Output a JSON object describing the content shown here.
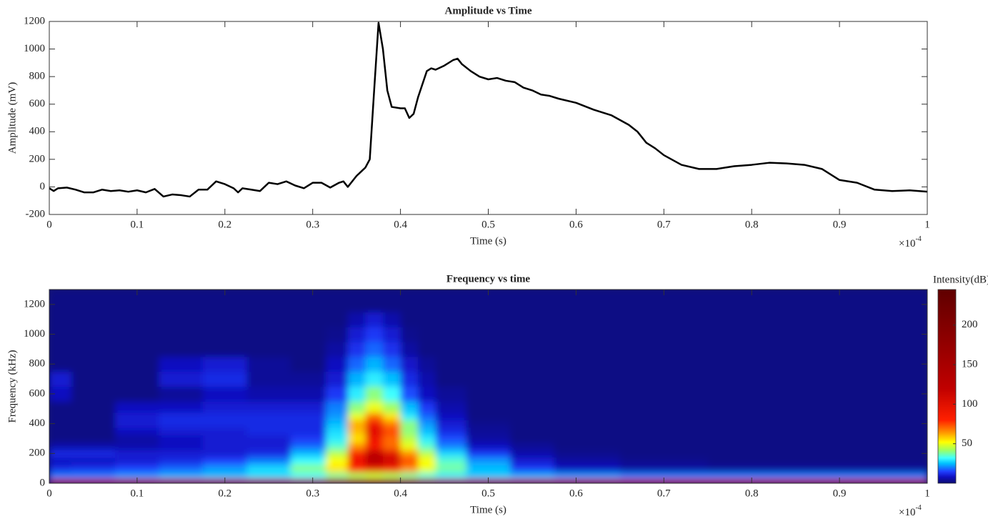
{
  "chart_data": [
    {
      "type": "line",
      "title": "Amplitude vs Time",
      "xlabel": "Time (s)",
      "ylabel": "Amplitude (mV)",
      "x_multiplier": "×10",
      "x_multiplier_exponent": "-4",
      "color": "#000000",
      "x": [
        0,
        0.005,
        0.01,
        0.02,
        0.03,
        0.04,
        0.05,
        0.06,
        0.07,
        0.08,
        0.09,
        0.1,
        0.11,
        0.12,
        0.13,
        0.14,
        0.15,
        0.16,
        0.17,
        0.18,
        0.19,
        0.2,
        0.21,
        0.215,
        0.22,
        0.23,
        0.24,
        0.25,
        0.26,
        0.27,
        0.28,
        0.29,
        0.3,
        0.31,
        0.32,
        0.33,
        0.335,
        0.34,
        0.35,
        0.36,
        0.365,
        0.37,
        0.375,
        0.38,
        0.385,
        0.39,
        0.4,
        0.405,
        0.41,
        0.415,
        0.42,
        0.43,
        0.435,
        0.44,
        0.45,
        0.46,
        0.465,
        0.47,
        0.48,
        0.49,
        0.5,
        0.51,
        0.52,
        0.53,
        0.54,
        0.55,
        0.56,
        0.57,
        0.58,
        0.6,
        0.62,
        0.64,
        0.66,
        0.67,
        0.68,
        0.69,
        0.7,
        0.72,
        0.74,
        0.76,
        0.78,
        0.8,
        0.82,
        0.84,
        0.86,
        0.88,
        0.9,
        0.92,
        0.94,
        0.96,
        0.98,
        1
      ],
      "values": [
        -10,
        -30,
        -10,
        -5,
        -20,
        -40,
        -40,
        -20,
        -30,
        -25,
        -35,
        -25,
        -40,
        -15,
        -70,
        -55,
        -60,
        -70,
        -20,
        -20,
        40,
        20,
        -10,
        -40,
        -10,
        -20,
        -30,
        30,
        20,
        40,
        10,
        -10,
        30,
        30,
        -5,
        30,
        40,
        0,
        80,
        140,
        200,
        700,
        1190,
        1000,
        700,
        580,
        570,
        570,
        500,
        530,
        650,
        840,
        860,
        850,
        880,
        920,
        930,
        890,
        840,
        800,
        780,
        790,
        770,
        760,
        720,
        700,
        670,
        660,
        640,
        610,
        560,
        520,
        450,
        400,
        320,
        280,
        230,
        160,
        130,
        130,
        150,
        160,
        175,
        170,
        160,
        130,
        50,
        30,
        -20,
        -30,
        -25,
        -35
      ],
      "xlim": [
        0,
        1
      ],
      "xticks": [
        0,
        0.1,
        0.2,
        0.3,
        0.4,
        0.5,
        0.6,
        0.7,
        0.8,
        0.9,
        1
      ],
      "ylim": [
        -200,
        1200
      ],
      "yticks": [
        -200,
        0,
        200,
        400,
        600,
        800,
        1000,
        1200
      ]
    },
    {
      "type": "contour",
      "title": "Frequency vs time",
      "xlabel": "Time (s)",
      "ylabel": "Frequency (kHz)",
      "x_multiplier": "×10",
      "x_multiplier_exponent": "-4",
      "colorbar_label": "Intensity(dB)",
      "x": [
        0,
        0.05,
        0.1,
        0.15,
        0.2,
        0.25,
        0.3,
        0.33,
        0.35,
        0.37,
        0.39,
        0.41,
        0.43,
        0.45,
        0.5,
        0.55,
        0.6,
        0.7,
        0.8,
        0.9,
        1
      ],
      "y": [
        10,
        50,
        100,
        150,
        200,
        250,
        300,
        350,
        400,
        450,
        500,
        600,
        700,
        800,
        900,
        1000,
        1100,
        1200
      ],
      "z": [
        [
          110,
          110,
          110,
          110,
          110,
          110,
          110,
          110,
          110,
          110,
          110,
          110,
          110,
          110,
          110,
          110,
          110,
          110,
          110,
          110,
          110
        ],
        [
          20,
          20,
          22,
          24,
          25,
          28,
          32,
          38,
          42,
          45,
          42,
          38,
          34,
          30,
          26,
          24,
          22,
          20,
          20,
          20,
          20
        ],
        [
          12,
          13,
          15,
          18,
          22,
          28,
          40,
          55,
          80,
          95,
          85,
          65,
          50,
          38,
          25,
          14,
          8,
          5,
          4,
          4,
          4
        ],
        [
          8,
          8,
          10,
          12,
          15,
          20,
          32,
          52,
          90,
          130,
          110,
          75,
          52,
          35,
          22,
          10,
          5,
          3,
          2,
          2,
          2
        ],
        [
          12,
          12,
          10,
          10,
          10,
          12,
          25,
          45,
          85,
          125,
          100,
          65,
          45,
          28,
          14,
          6,
          3,
          2,
          2,
          2,
          2
        ],
        [
          6,
          6,
          6,
          8,
          10,
          10,
          18,
          35,
          65,
          85,
          70,
          50,
          35,
          20,
          8,
          4,
          2,
          2,
          2,
          2,
          2
        ],
        [
          2,
          2,
          5,
          8,
          10,
          10,
          14,
          30,
          55,
          90,
          70,
          45,
          30,
          16,
          5,
          2,
          2,
          2,
          2,
          2,
          2
        ],
        [
          2,
          2,
          8,
          10,
          10,
          12,
          12,
          28,
          60,
          100,
          75,
          40,
          25,
          12,
          4,
          2,
          2,
          2,
          2,
          2,
          2
        ],
        [
          2,
          2,
          10,
          12,
          12,
          12,
          12,
          25,
          62,
          90,
          68,
          40,
          22,
          10,
          3,
          2,
          2,
          2,
          2,
          2,
          2
        ],
        [
          2,
          2,
          10,
          12,
          12,
          12,
          12,
          22,
          50,
          70,
          55,
          30,
          18,
          8,
          2,
          2,
          2,
          2,
          2,
          2,
          2
        ],
        [
          2,
          2,
          8,
          8,
          10,
          10,
          10,
          20,
          40,
          50,
          42,
          25,
          14,
          6,
          2,
          2,
          2,
          2,
          2,
          2,
          2
        ],
        [
          8,
          2,
          2,
          4,
          8,
          6,
          6,
          14,
          30,
          40,
          32,
          16,
          8,
          4,
          2,
          2,
          2,
          2,
          2,
          2,
          2
        ],
        [
          10,
          2,
          2,
          10,
          12,
          4,
          4,
          10,
          24,
          30,
          25,
          12,
          6,
          2,
          2,
          2,
          2,
          2,
          2,
          2,
          2
        ],
        [
          2,
          2,
          2,
          8,
          10,
          4,
          2,
          8,
          18,
          24,
          18,
          9,
          4,
          2,
          2,
          2,
          2,
          2,
          2,
          2,
          2
        ],
        [
          2,
          2,
          2,
          2,
          2,
          2,
          2,
          5,
          13,
          18,
          13,
          5,
          2,
          2,
          2,
          2,
          2,
          2,
          2,
          2,
          2
        ],
        [
          2,
          2,
          2,
          2,
          2,
          2,
          2,
          3,
          10,
          14,
          10,
          3,
          2,
          2,
          2,
          2,
          2,
          2,
          2,
          2,
          2
        ],
        [
          2,
          2,
          2,
          2,
          2,
          2,
          2,
          2,
          6,
          10,
          6,
          2,
          2,
          2,
          2,
          2,
          2,
          2,
          2,
          2,
          2
        ],
        [
          2,
          2,
          2,
          2,
          2,
          2,
          2,
          2,
          2,
          2,
          2,
          2,
          2,
          2,
          2,
          2,
          2,
          2,
          2,
          2,
          2
        ]
      ],
      "colormap": [
        {
          "value": 0,
          "color": "#0c0c70"
        },
        {
          "value": 8,
          "color": "#1010c0"
        },
        {
          "value": 15,
          "color": "#2040ff"
        },
        {
          "value": 25,
          "color": "#00c0ff"
        },
        {
          "value": 32,
          "color": "#40ffff"
        },
        {
          "value": 42,
          "color": "#a0ff60"
        },
        {
          "value": 52,
          "color": "#ffff00"
        },
        {
          "value": 65,
          "color": "#ff9000"
        },
        {
          "value": 80,
          "color": "#ff2000"
        },
        {
          "value": 120,
          "color": "#c00000"
        },
        {
          "value": 180,
          "color": "#900000"
        },
        {
          "value": 245,
          "color": "#600000"
        }
      ],
      "clim": [
        0,
        245
      ],
      "cticks": [
        50,
        100,
        150,
        200
      ],
      "xlim": [
        0,
        1
      ],
      "xticks": [
        0,
        0.1,
        0.2,
        0.3,
        0.4,
        0.5,
        0.6,
        0.7,
        0.8,
        0.9,
        1
      ],
      "ylim": [
        0,
        1300
      ],
      "yticks": [
        0,
        200,
        400,
        600,
        800,
        1000,
        1200
      ]
    }
  ]
}
